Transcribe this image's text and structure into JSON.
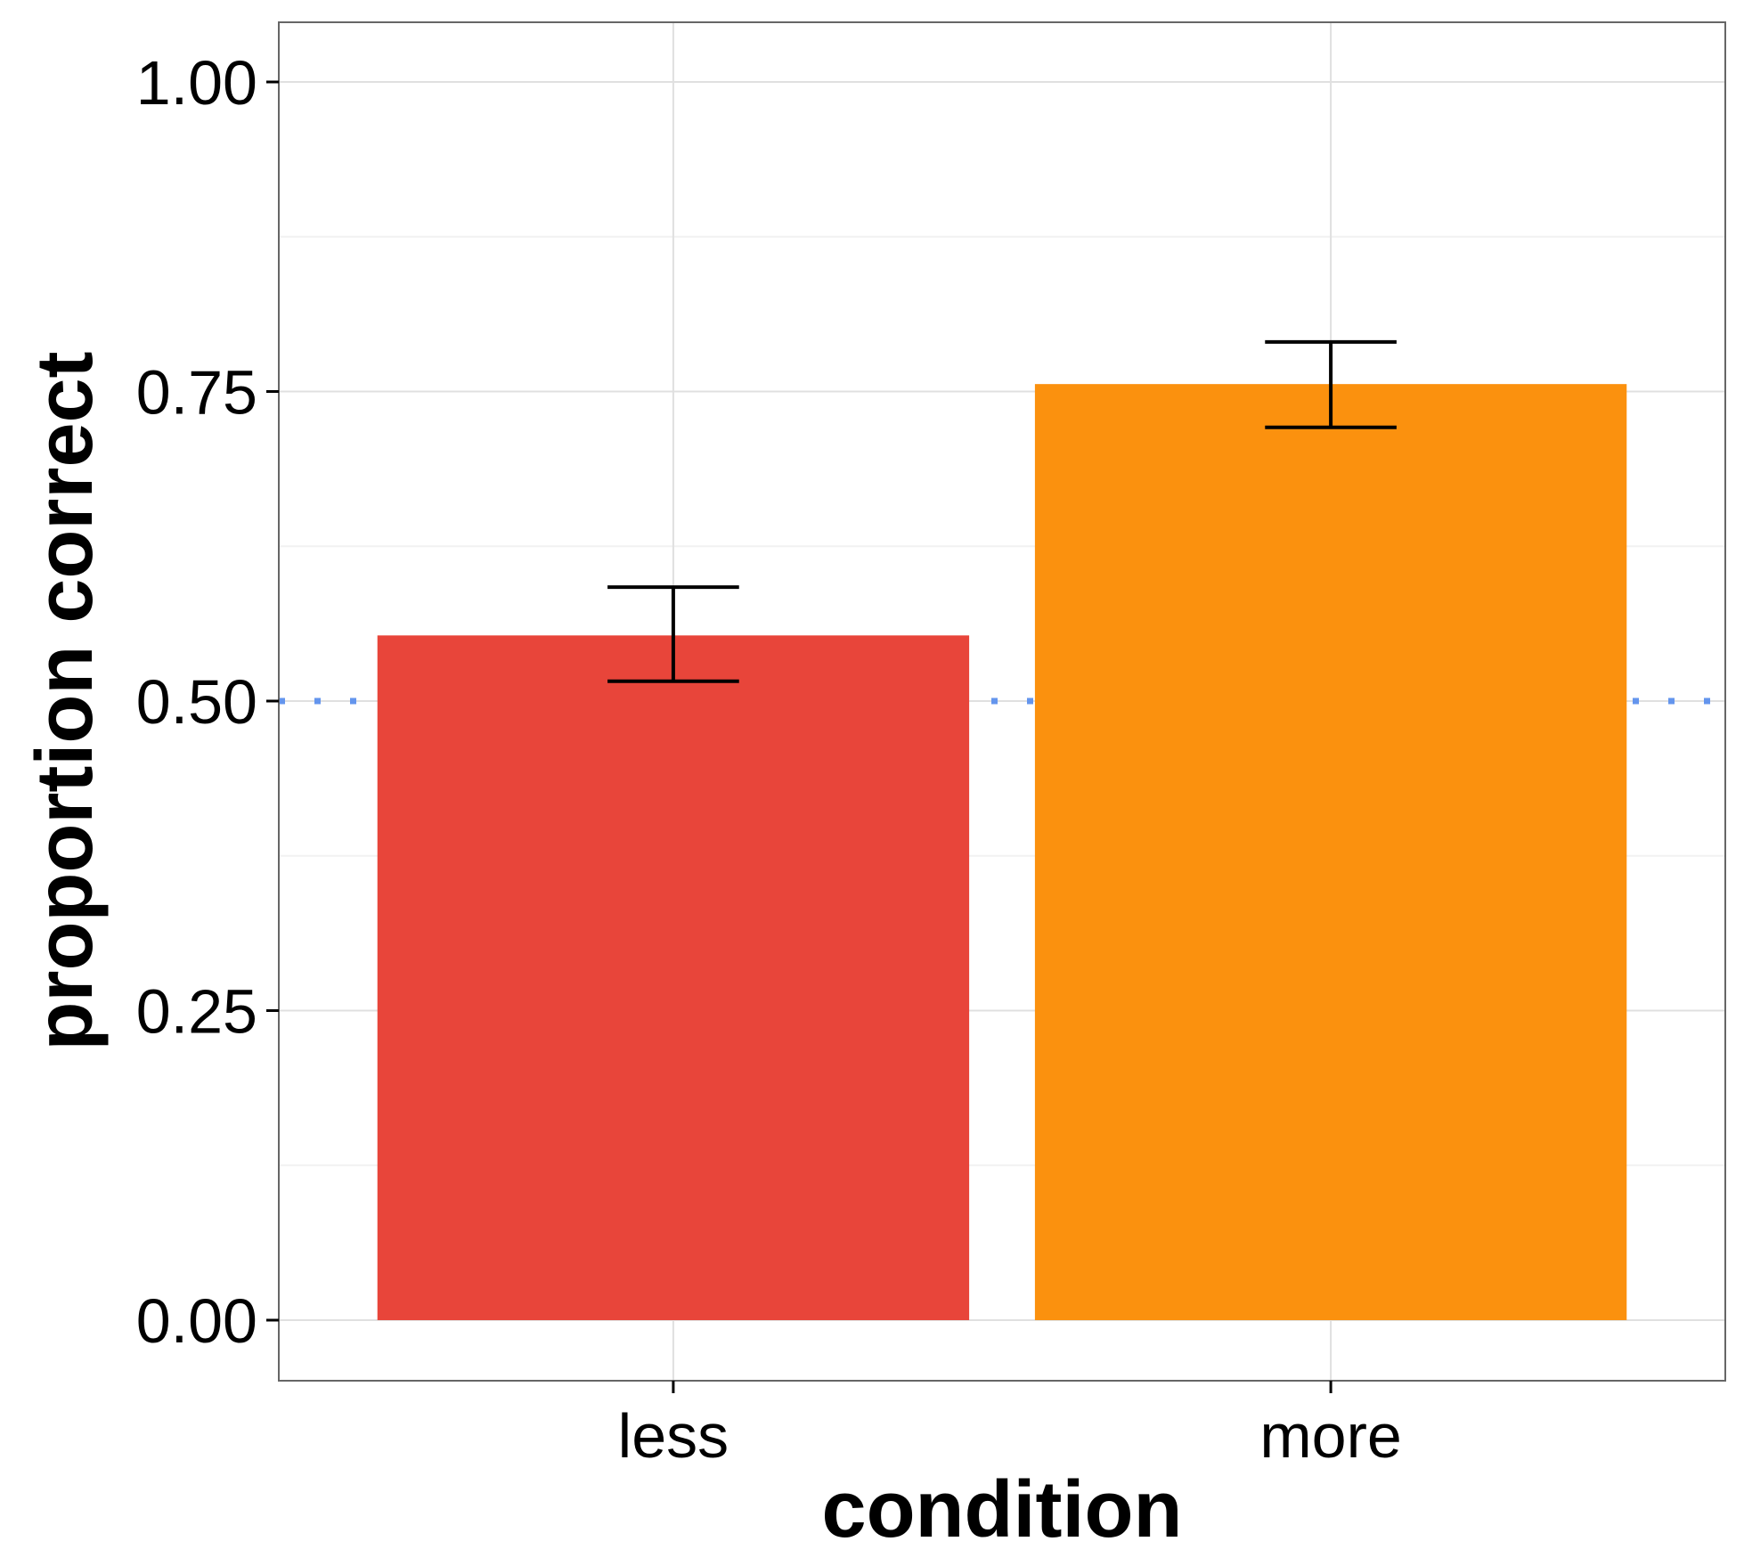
{
  "chart_data": {
    "type": "bar",
    "title": "",
    "xlabel": "condition",
    "ylabel": "proportion correct",
    "categories": [
      "less",
      "more"
    ],
    "values": [
      0.553,
      0.756
    ],
    "error_bars": [
      {
        "low": 0.516,
        "high": 0.592
      },
      {
        "low": 0.721,
        "high": 0.79
      }
    ],
    "bar_colors": [
      "#e8453a",
      "#fb910e"
    ],
    "ylim": [
      -0.05,
      1.05
    ],
    "yticks": [
      0,
      0.25,
      0.5,
      0.75,
      1.0
    ],
    "ytick_labels": [
      "0.00",
      "0.25",
      "0.50",
      "0.75",
      "1.00"
    ],
    "reference_line": {
      "y": 0.5,
      "style": "dotted",
      "color": "#6495ed"
    },
    "grid": true,
    "legend": false
  }
}
